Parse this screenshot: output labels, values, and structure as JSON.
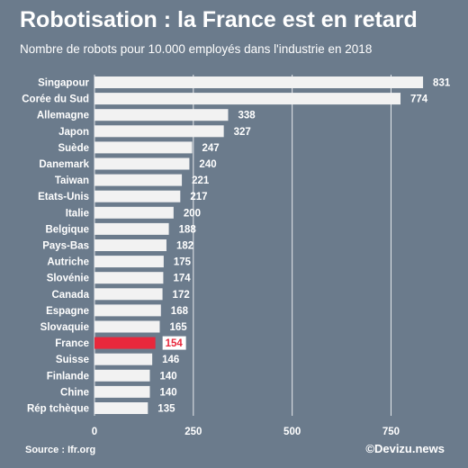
{
  "header": {
    "title": "Robotisation : la France est en retard",
    "subtitle": "Nombre de robots pour 10.000 employés dans l'industrie en 2018"
  },
  "footer": {
    "source": "Source : Ifr.org",
    "credit": "©Devizu.news"
  },
  "colors": {
    "background": "#6b7b8c",
    "bar": "#f2f2f2",
    "highlight": "#e8283c",
    "grid": "#e6e9ec"
  },
  "chart_data": {
    "type": "bar",
    "orientation": "horizontal",
    "categories": [
      "Singapour",
      "Corée du Sud",
      "Allemagne",
      "Japon",
      "Suède",
      "Danemark",
      "Taiwan",
      "Etats-Unis",
      "Italie",
      "Belgique",
      "Pays-Bas",
      "Autriche",
      "Slovénie",
      "Canada",
      "Espagne",
      "Slovaquie",
      "France",
      "Suisse",
      "Finlande",
      "Chine",
      "Rép tchèque"
    ],
    "values": [
      831,
      774,
      338,
      327,
      247,
      240,
      221,
      217,
      200,
      188,
      182,
      175,
      174,
      172,
      168,
      165,
      154,
      146,
      140,
      140,
      135
    ],
    "highlight": "France",
    "xlim": [
      0,
      850
    ],
    "xticks": [
      0,
      250,
      500,
      750
    ],
    "grid": true
  }
}
